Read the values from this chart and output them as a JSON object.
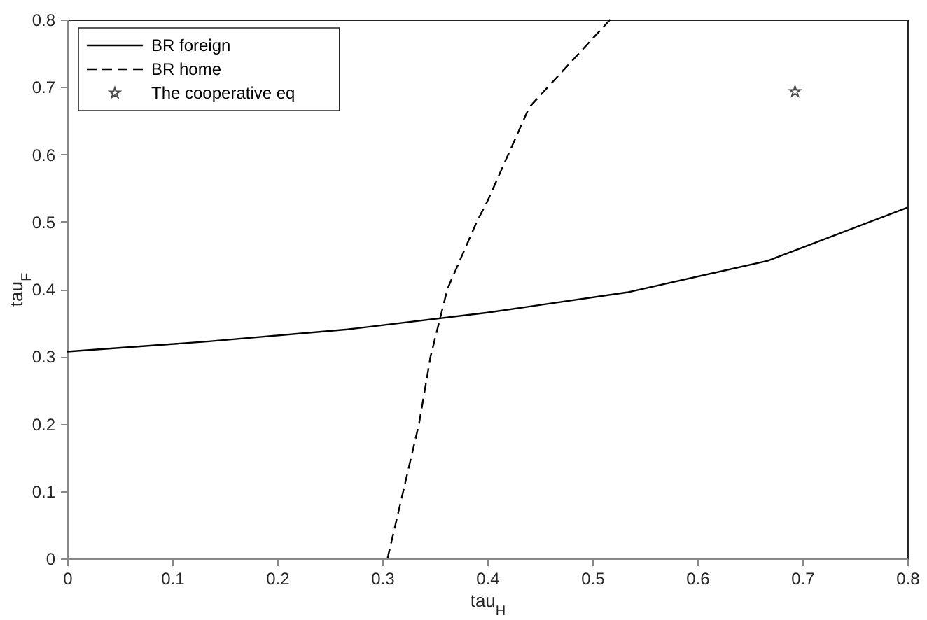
{
  "chart_data": {
    "type": "line",
    "xlabel": "tau$_{H}$",
    "ylabel": "tau$_{F}$",
    "xlim": [
      0,
      0.8
    ],
    "ylim": [
      0,
      0.8
    ],
    "xticks": [
      0,
      0.1,
      0.2,
      0.3,
      0.4,
      0.5,
      0.6,
      0.7,
      0.8
    ],
    "yticks": [
      0,
      0.1,
      0.2,
      0.3,
      0.4,
      0.5,
      0.6,
      0.7,
      0.8
    ],
    "grid": false,
    "legend": "top left",
    "series": [
      {
        "name": "BR foreign",
        "color": "#000000",
        "line_style": "solid",
        "x": [
          0,
          0.133,
          0.267,
          0.4,
          0.533,
          0.667,
          0.8
        ],
        "values": [
          0.307,
          0.322,
          0.34,
          0.365,
          0.395,
          0.442,
          0.521
        ]
      },
      {
        "name": "BR home",
        "color": "#000000",
        "line_style": "dashed",
        "x": [
          0.305,
          0.32,
          0.335,
          0.346,
          0.362,
          0.39,
          0.4,
          0.44,
          0.517
        ],
        "values": [
          0,
          0.1,
          0.2,
          0.3,
          0.4,
          0.5,
          0.53,
          0.67,
          0.8
        ]
      },
      {
        "name": "The cooperative eq",
        "color": "#000000",
        "type": "scatter",
        "marker": "star",
        "x": [
          0.693
        ],
        "values": [
          0.693
        ]
      }
    ]
  }
}
